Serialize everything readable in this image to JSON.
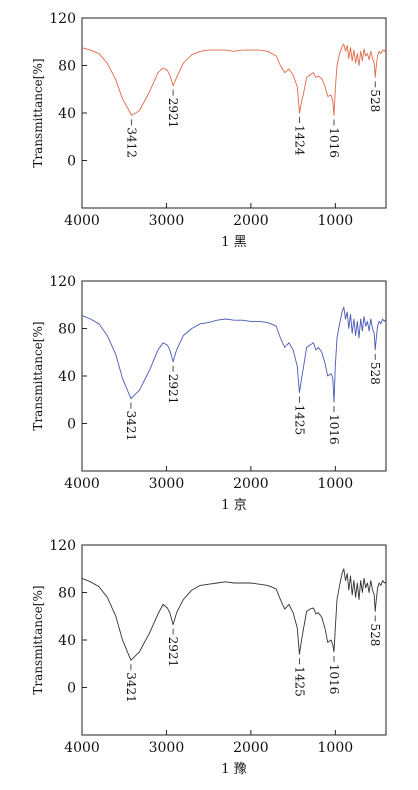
{
  "chart_data": [
    {
      "type": "line",
      "caption": "1 黑",
      "ylabel": "Transmittance[%]",
      "xlim": [
        4000,
        400
      ],
      "ylim": [
        -40,
        120
      ],
      "x_ticks": [
        "4000",
        "3000",
        "2000",
        "1000"
      ],
      "y_ticks": [
        "120",
        "80",
        "40",
        "0"
      ],
      "peak_labels": [
        "3412",
        "2921",
        "1424",
        "1016",
        "528"
      ],
      "line_color": "#e06a4a",
      "series": [
        {
          "x": [
            4000,
            3900,
            3800,
            3700,
            3600,
            3520,
            3412,
            3320,
            3200,
            3100,
            3040,
            2990,
            2960,
            2921,
            2880,
            2800,
            2700,
            2600,
            2500,
            2400,
            2300,
            2200,
            2100,
            2000,
            1900,
            1800,
            1700,
            1650,
            1600,
            1550,
            1500,
            1450,
            1424,
            1400,
            1380,
            1340,
            1300,
            1260,
            1230,
            1200,
            1160,
            1120,
            1090,
            1050,
            1030,
            1016,
            1000,
            980,
            950,
            920,
            900,
            880,
            860,
            840,
            820,
            800,
            780,
            760,
            740,
            720,
            700,
            680,
            660,
            640,
            620,
            600,
            580,
            560,
            540,
            528,
            515,
            500,
            480,
            460,
            440,
            420,
            400
          ],
          "y": [
            95,
            93,
            90,
            82,
            68,
            52,
            38,
            42,
            58,
            74,
            78,
            76,
            72,
            63,
            70,
            82,
            89,
            92,
            93,
            93,
            93,
            92,
            93,
            93,
            93,
            92,
            88,
            80,
            74,
            77,
            72,
            62,
            40,
            50,
            55,
            70,
            72,
            74,
            70,
            71,
            69,
            62,
            54,
            55,
            50,
            38,
            60,
            80,
            90,
            96,
            98,
            92,
            97,
            86,
            95,
            84,
            93,
            82,
            90,
            80,
            92,
            84,
            94,
            88,
            90,
            85,
            92,
            86,
            82,
            70,
            80,
            88,
            92,
            90,
            93,
            92,
            94
          ]
        }
      ]
    },
    {
      "type": "line",
      "caption": "1 京",
      "ylabel": "Transmittance[%]",
      "xlim": [
        4000,
        400
      ],
      "ylim": [
        -40,
        120
      ],
      "x_ticks": [
        "4000",
        "3000",
        "2000",
        "1000"
      ],
      "y_ticks": [
        "120",
        "80",
        "40",
        "0"
      ],
      "peak_labels": [
        "3421",
        "2921",
        "1425",
        "1016",
        "528"
      ],
      "line_color": "#4a58b8",
      "series": [
        {
          "x": [
            4000,
            3900,
            3800,
            3700,
            3600,
            3520,
            3421,
            3320,
            3200,
            3100,
            3040,
            2990,
            2960,
            2921,
            2880,
            2800,
            2700,
            2600,
            2500,
            2400,
            2300,
            2200,
            2100,
            2000,
            1900,
            1800,
            1700,
            1650,
            1600,
            1550,
            1500,
            1450,
            1425,
            1400,
            1380,
            1340,
            1300,
            1260,
            1230,
            1200,
            1160,
            1120,
            1090,
            1050,
            1030,
            1016,
            1000,
            980,
            950,
            920,
            900,
            880,
            860,
            840,
            820,
            800,
            780,
            760,
            740,
            720,
            700,
            680,
            660,
            640,
            620,
            600,
            580,
            560,
            540,
            528,
            515,
            500,
            480,
            460,
            440,
            420,
            400
          ],
          "y": [
            91,
            88,
            84,
            74,
            58,
            38,
            21,
            28,
            45,
            62,
            68,
            66,
            62,
            52,
            62,
            74,
            80,
            84,
            85,
            87,
            88,
            87,
            87,
            86,
            86,
            85,
            82,
            72,
            64,
            68,
            62,
            48,
            26,
            38,
            46,
            64,
            66,
            68,
            62,
            64,
            60,
            50,
            40,
            42,
            38,
            18,
            48,
            72,
            84,
            94,
            98,
            88,
            94,
            80,
            92,
            76,
            88,
            74,
            86,
            72,
            88,
            78,
            90,
            82,
            86,
            78,
            88,
            80,
            76,
            62,
            72,
            82,
            86,
            84,
            88,
            86,
            88
          ]
        }
      ]
    },
    {
      "type": "line",
      "caption": "1 豫",
      "ylabel": "Transmittance[%]",
      "xlim": [
        4000,
        400
      ],
      "ylim": [
        -40,
        120
      ],
      "x_ticks": [
        "4000",
        "3000",
        "2000",
        "1000"
      ],
      "y_ticks": [
        "120",
        "80",
        "40",
        "0"
      ],
      "peak_labels": [
        "3421",
        "2921",
        "1425",
        "1016",
        "528"
      ],
      "line_color": "#333333",
      "series": [
        {
          "x": [
            4000,
            3900,
            3800,
            3700,
            3600,
            3520,
            3421,
            3320,
            3200,
            3100,
            3040,
            2990,
            2960,
            2921,
            2880,
            2800,
            2700,
            2600,
            2500,
            2400,
            2300,
            2200,
            2100,
            2000,
            1900,
            1800,
            1700,
            1650,
            1600,
            1550,
            1500,
            1450,
            1425,
            1400,
            1380,
            1340,
            1300,
            1260,
            1230,
            1200,
            1160,
            1120,
            1090,
            1050,
            1030,
            1016,
            1000,
            980,
            950,
            920,
            900,
            880,
            860,
            840,
            820,
            800,
            780,
            760,
            740,
            720,
            700,
            680,
            660,
            640,
            620,
            600,
            580,
            560,
            540,
            528,
            515,
            500,
            480,
            460,
            440,
            420,
            400
          ],
          "y": [
            92,
            89,
            85,
            76,
            60,
            40,
            23,
            30,
            46,
            62,
            70,
            67,
            63,
            53,
            63,
            74,
            82,
            86,
            87,
            88,
            89,
            88,
            88,
            88,
            87,
            86,
            83,
            74,
            66,
            70,
            63,
            50,
            28,
            40,
            48,
            64,
            66,
            67,
            62,
            63,
            59,
            49,
            38,
            40,
            36,
            30,
            50,
            74,
            86,
            96,
            100,
            90,
            96,
            82,
            94,
            78,
            90,
            76,
            88,
            74,
            90,
            80,
            92,
            84,
            88,
            80,
            90,
            82,
            78,
            64,
            74,
            84,
            88,
            86,
            90,
            88,
            89
          ]
        }
      ]
    }
  ]
}
